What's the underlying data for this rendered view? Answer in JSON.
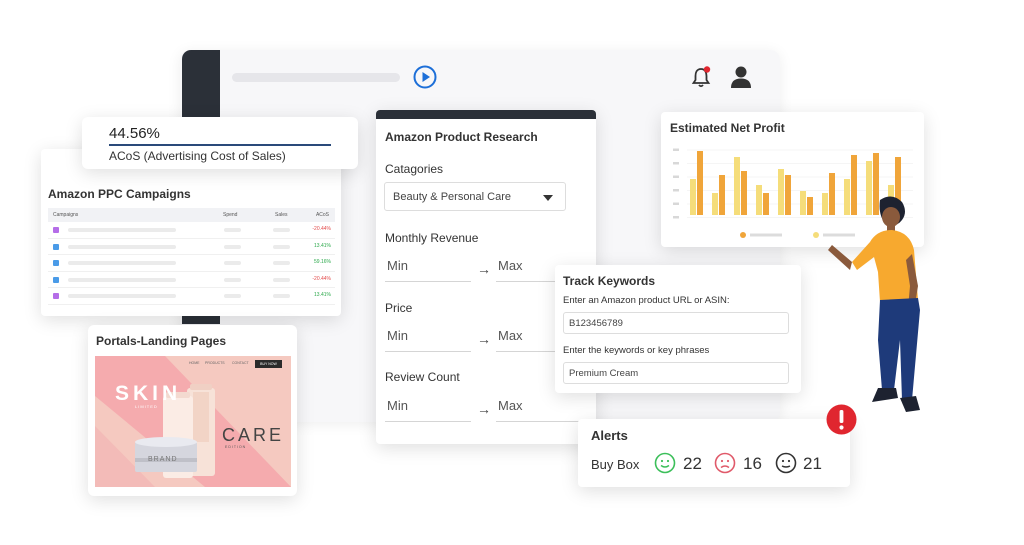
{
  "acos": {
    "value": "44.56%",
    "label": "ACoS (Advertising Cost of Sales)"
  },
  "ppc": {
    "title": "Amazon PPC Campaigns",
    "columns": [
      "Campaigns",
      "Spend",
      "Sales",
      "ACoS"
    ],
    "rows": [
      {
        "acos": "-20.44%",
        "color": "#e34a4a",
        "chk": "#b56de8"
      },
      {
        "acos": "13.41%",
        "color": "#2aa84a",
        "chk": "#4a9be8"
      },
      {
        "acos": "59.16%",
        "color": "#2aa84a",
        "chk": "#4a9be8"
      },
      {
        "acos": "-20.44%",
        "color": "#e34a4a",
        "chk": "#4a9be8"
      },
      {
        "acos": "13.41%",
        "color": "#2aa84a",
        "chk": "#b56de8"
      }
    ]
  },
  "landing": {
    "title": "Portals-Landing Pages",
    "nav": [
      "HOME",
      "PRODUCTS",
      "CONTACT"
    ],
    "buy": "BUY NOW",
    "skin": "SKIN",
    "limited": "LIMITED",
    "care": "CARE",
    "edition": "EDITION",
    "brand": "BRAND"
  },
  "research": {
    "title": "Amazon Product Research",
    "categories_label": "Catagories",
    "category_value": "Beauty & Personal Care",
    "revenue_label": "Monthly Revenue",
    "price_label": "Price",
    "review_label": "Review Count",
    "min": "Min",
    "max": "Max",
    "arrow": "→"
  },
  "profit": {
    "title": "Estimated Net Profit",
    "colors": {
      "light": "#f5dd7a",
      "dark": "#f0a53a"
    }
  },
  "track": {
    "title": "Track Keywords",
    "url_label": "Enter an Amazon product URL or ASIN:",
    "url_value": "B123456789",
    "kw_label": "Enter the keywords or key phrases",
    "kw_value": "Premium Cream"
  },
  "alerts": {
    "title": "Alerts",
    "buybox": "Buy Box",
    "happy": "22",
    "sad": "16",
    "neutral": "21",
    "colors": {
      "happy": "#3cbf5a",
      "sad": "#e05a6a",
      "neutral": "#333333",
      "alert": "#e0262f"
    }
  },
  "icons": [
    "play-icon",
    "bell-icon",
    "user-icon",
    "dropdown-arrow-icon",
    "arrow-right-icon",
    "happy-face-icon",
    "sad-face-icon",
    "neutral-face-icon",
    "alert-icon"
  ]
}
